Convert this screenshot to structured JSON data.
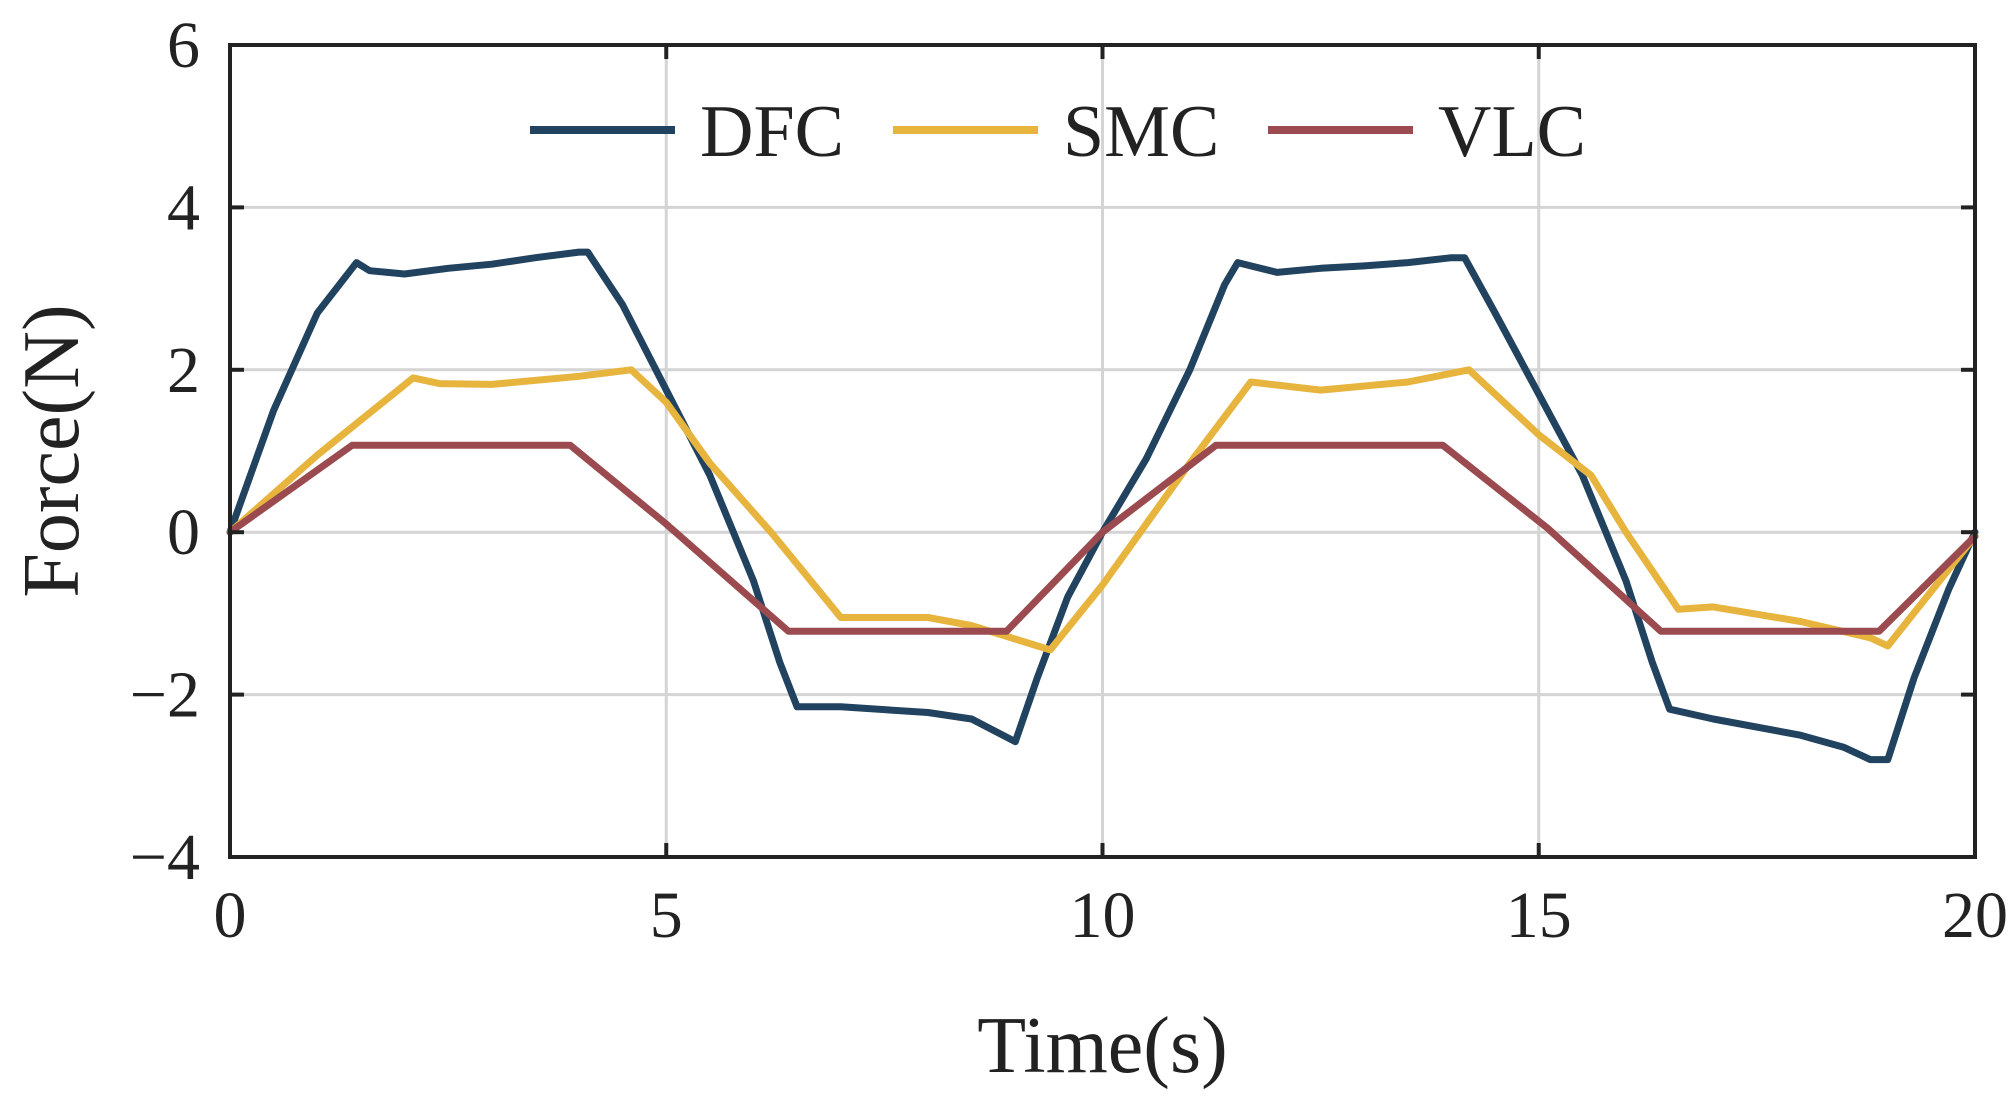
{
  "chart_data": {
    "type": "line",
    "title": "",
    "xlabel": "Time(s)",
    "ylabel": "Force(N)",
    "xlim": [
      0,
      20
    ],
    "ylim": [
      -4,
      6
    ],
    "xticks": [
      0,
      5,
      10,
      15,
      20
    ],
    "yticks": [
      -4,
      -2,
      0,
      2,
      4,
      6
    ],
    "xtick_labels": [
      "0",
      "5",
      "10",
      "15",
      "20"
    ],
    "ytick_labels": [
      "−4",
      "−2",
      "0",
      "2",
      "4",
      "6"
    ],
    "grid": true,
    "legend_position": "top-center",
    "series": [
      {
        "name": "DFC",
        "color": "#21435f",
        "points": [
          [
            0,
            0
          ],
          [
            0.5,
            1.5
          ],
          [
            1,
            2.7
          ],
          [
            1.45,
            3.32
          ],
          [
            1.6,
            3.22
          ],
          [
            2,
            3.18
          ],
          [
            2.5,
            3.25
          ],
          [
            3,
            3.3
          ],
          [
            3.5,
            3.38
          ],
          [
            4,
            3.45
          ],
          [
            4.1,
            3.45
          ],
          [
            4.5,
            2.8
          ],
          [
            5,
            1.75
          ],
          [
            5.5,
            0.7
          ],
          [
            6,
            -0.6
          ],
          [
            6.3,
            -1.6
          ],
          [
            6.5,
            -2.15
          ],
          [
            7,
            -2.15
          ],
          [
            8,
            -2.22
          ],
          [
            8.5,
            -2.3
          ],
          [
            9,
            -2.58
          ],
          [
            9.25,
            -1.8
          ],
          [
            9.6,
            -0.8
          ],
          [
            10,
            0
          ],
          [
            10.5,
            0.9
          ],
          [
            11,
            2.0
          ],
          [
            11.4,
            3.05
          ],
          [
            11.55,
            3.32
          ],
          [
            12,
            3.2
          ],
          [
            12.5,
            3.25
          ],
          [
            13,
            3.28
          ],
          [
            13.5,
            3.32
          ],
          [
            14,
            3.38
          ],
          [
            14.15,
            3.38
          ],
          [
            14.5,
            2.7
          ],
          [
            15,
            1.7
          ],
          [
            15.5,
            0.7
          ],
          [
            16,
            -0.6
          ],
          [
            16.3,
            -1.6
          ],
          [
            16.5,
            -2.18
          ],
          [
            17,
            -2.3
          ],
          [
            18,
            -2.5
          ],
          [
            18.5,
            -2.65
          ],
          [
            18.8,
            -2.8
          ],
          [
            19,
            -2.8
          ],
          [
            19.3,
            -1.8
          ],
          [
            19.7,
            -0.7
          ],
          [
            20,
            0
          ]
        ]
      },
      {
        "name": "SMC",
        "color": "#e7b43d",
        "points": [
          [
            0,
            0
          ],
          [
            1,
            0.95
          ],
          [
            2.1,
            1.9
          ],
          [
            2.4,
            1.83
          ],
          [
            3,
            1.82
          ],
          [
            4,
            1.92
          ],
          [
            4.6,
            2.0
          ],
          [
            5,
            1.6
          ],
          [
            5.5,
            0.85
          ],
          [
            6.2,
            0
          ],
          [
            7,
            -1.05
          ],
          [
            8,
            -1.05
          ],
          [
            8.5,
            -1.15
          ],
          [
            9.4,
            -1.45
          ],
          [
            10,
            -0.65
          ],
          [
            11,
            0.85
          ],
          [
            11.7,
            1.85
          ],
          [
            12.5,
            1.75
          ],
          [
            13.5,
            1.85
          ],
          [
            14.2,
            2.0
          ],
          [
            15,
            1.2
          ],
          [
            15.6,
            0.7
          ],
          [
            16,
            0
          ],
          [
            16.6,
            -0.95
          ],
          [
            17,
            -0.92
          ],
          [
            18,
            -1.1
          ],
          [
            18.8,
            -1.3
          ],
          [
            19,
            -1.4
          ],
          [
            20,
            -0.05
          ]
        ]
      },
      {
        "name": "VLC",
        "color": "#9b4b4f",
        "points": [
          [
            0,
            0
          ],
          [
            1.4,
            1.07
          ],
          [
            3.9,
            1.07
          ],
          [
            5,
            0.1
          ],
          [
            6.4,
            -1.22
          ],
          [
            8.9,
            -1.22
          ],
          [
            10,
            0
          ],
          [
            11.3,
            1.07
          ],
          [
            13.9,
            1.07
          ],
          [
            15.1,
            0.05
          ],
          [
            16.4,
            -1.22
          ],
          [
            18.9,
            -1.22
          ],
          [
            20,
            -0.05
          ]
        ]
      }
    ]
  }
}
